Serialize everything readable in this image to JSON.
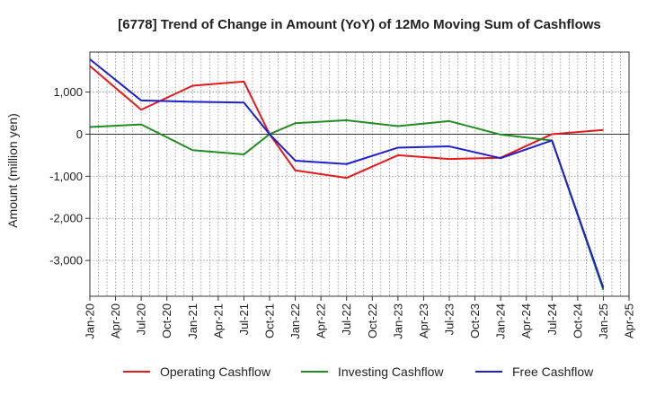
{
  "chart_data": {
    "type": "line",
    "title": "[6778]  Trend of Change in Amount (YoY) of 12Mo Moving Sum of Cashflows",
    "xlabel": "",
    "ylabel": "Amount (million yen)",
    "categories": [
      "Jan-20",
      "Apr-20",
      "Jul-20",
      "Oct-20",
      "Jan-21",
      "Apr-21",
      "Jul-21",
      "Oct-21",
      "Jan-22",
      "Apr-22",
      "Jul-22",
      "Oct-22",
      "Jan-23",
      "Apr-23",
      "Jul-23",
      "Oct-23",
      "Jan-24",
      "Apr-24",
      "Jul-24",
      "Oct-24",
      "Jan-25",
      "Apr-25"
    ],
    "yticks": [
      1000,
      0,
      -1000,
      -2000,
      -3000
    ],
    "ytick_labels": [
      "1,000",
      "0",
      "-1,000",
      "-2,000",
      "-3,000"
    ],
    "ylim": [
      -3850,
      1950
    ],
    "grid": true,
    "legend_position": "bottom",
    "series": [
      {
        "name": "Operating Cashflow",
        "color": "#e31a1c",
        "points": [
          {
            "x": "Jan-20",
            "y": 1620
          },
          {
            "x": "Jul-20",
            "y": 580
          },
          {
            "x": "Jan-21",
            "y": 1150
          },
          {
            "x": "Jul-21",
            "y": 1250
          },
          {
            "x": "Oct-21",
            "y": 0
          },
          {
            "x": "Jan-22",
            "y": -860
          },
          {
            "x": "Jul-22",
            "y": -1040
          },
          {
            "x": "Jan-23",
            "y": -500
          },
          {
            "x": "Jul-23",
            "y": -590
          },
          {
            "x": "Jan-24",
            "y": -560
          },
          {
            "x": "Jul-24",
            "y": 0
          },
          {
            "x": "Jan-25",
            "y": 100
          }
        ]
      },
      {
        "name": "Investing Cashflow",
        "color": "#238b23",
        "points": [
          {
            "x": "Jan-20",
            "y": 170
          },
          {
            "x": "Jul-20",
            "y": 230
          },
          {
            "x": "Jan-21",
            "y": -380
          },
          {
            "x": "Jul-21",
            "y": -480
          },
          {
            "x": "Oct-21",
            "y": 0
          },
          {
            "x": "Jan-22",
            "y": 260
          },
          {
            "x": "Jul-22",
            "y": 330
          },
          {
            "x": "Jan-23",
            "y": 190
          },
          {
            "x": "Jul-23",
            "y": 310
          },
          {
            "x": "Jan-24",
            "y": -10
          },
          {
            "x": "Jul-24",
            "y": -150
          },
          {
            "x": "Jan-25",
            "y": -3700
          }
        ]
      },
      {
        "name": "Free Cashflow",
        "color": "#1f1fcc",
        "points": [
          {
            "x": "Jan-20",
            "y": 1780
          },
          {
            "x": "Jul-20",
            "y": 800
          },
          {
            "x": "Jan-21",
            "y": 770
          },
          {
            "x": "Jul-21",
            "y": 750
          },
          {
            "x": "Oct-21",
            "y": 0
          },
          {
            "x": "Jan-22",
            "y": -630
          },
          {
            "x": "Jul-22",
            "y": -710
          },
          {
            "x": "Jan-23",
            "y": -320
          },
          {
            "x": "Jul-23",
            "y": -290
          },
          {
            "x": "Jan-24",
            "y": -570
          },
          {
            "x": "Jul-24",
            "y": -150
          },
          {
            "x": "Jan-25",
            "y": -3650
          }
        ]
      }
    ]
  }
}
